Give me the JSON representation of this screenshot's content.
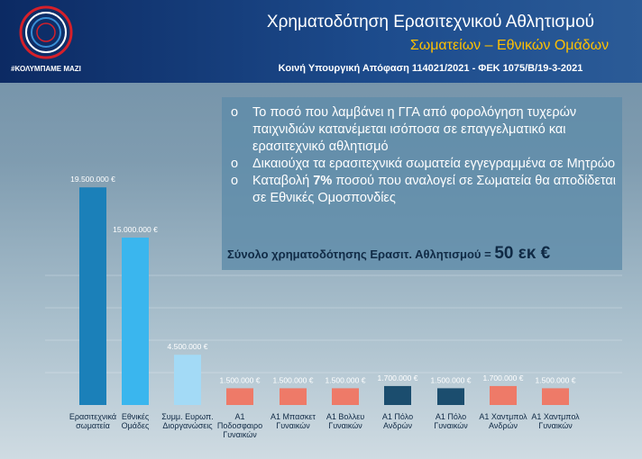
{
  "header": {
    "logo_text": "#ΚΟΛΥΜΠΑΜΕ ΜΑΖΙ",
    "title": "Χρηματοδότηση Ερασιτεχνικού Αθλητισμού",
    "subtitle": "Σωματείων – Εθνικών Ομάδων",
    "reference": "Κοινή Υπουργική Απόφαση 114021/2021 - ΦΕΚ 1075/Β/19-3-2021"
  },
  "info_box": {
    "bullets": [
      [
        "Το ποσό που λαμβάνει η ΓΓΑ από φορολόγηση τυχερών παιχνιδιών κατανέμεται ισόποσα σε επαγγελματικό και ερασιτεχνικό αθλητισμό"
      ],
      [
        "Δικαιούχα τα ερασιτεχνικά σωματεία εγγεγραμμένα σε Μητρώο"
      ],
      [
        "Καταβολή ",
        "7%",
        " ποσού που αναλογεί σε Σωματεία θα αποδίδεται σε Εθνικές Ομοσπονδίες"
      ]
    ],
    "total_label": "Σύνολο χρηματοδότησης Ερασιτ. Αθλητισμού =",
    "total_value": "50 εκ €"
  },
  "chart_data": {
    "type": "bar",
    "categories": [
      "Ερασιτεχνικά\nσωματεία",
      "Εθνικές\nΟμάδες",
      "Συμμ. Ευρωπ.\nΔιοργανώσεις",
      "Α1\nΠοδοσφαιρο\nΓυναικών",
      "Α1 Μπασκετ\nΓυναικών",
      "Α1 Βολλευ\nΓυναικών",
      "Α1 Πόλο\nΑνδρών",
      "Α1 Πόλο\nΓυναικών",
      "Α1 Χαντμπολ\nΑνδρών",
      "Α1 Χαντμπολ\nΓυναικών"
    ],
    "values": [
      19500000,
      15000000,
      4500000,
      1500000,
      1500000,
      1500000,
      1700000,
      1500000,
      1700000,
      1500000
    ],
    "value_labels": [
      "19.500.000 €",
      "15.000.000 €",
      "4.500.000 €",
      "1.500.000 €",
      "1.500.000 €",
      "1.500.000 €",
      "1.700.000 €",
      "1.500.000 €",
      "1.700.000 €",
      "1.500.000 €"
    ],
    "colors": [
      "#1b80b9",
      "#3ab6ee",
      "#a3daf6",
      "#ee7a68",
      "#ee7a68",
      "#ee7a68",
      "#1b4d6e",
      "#1b4d6e",
      "#ee7a68",
      "#ee7a68"
    ],
    "ylim": [
      0,
      20000000
    ]
  }
}
